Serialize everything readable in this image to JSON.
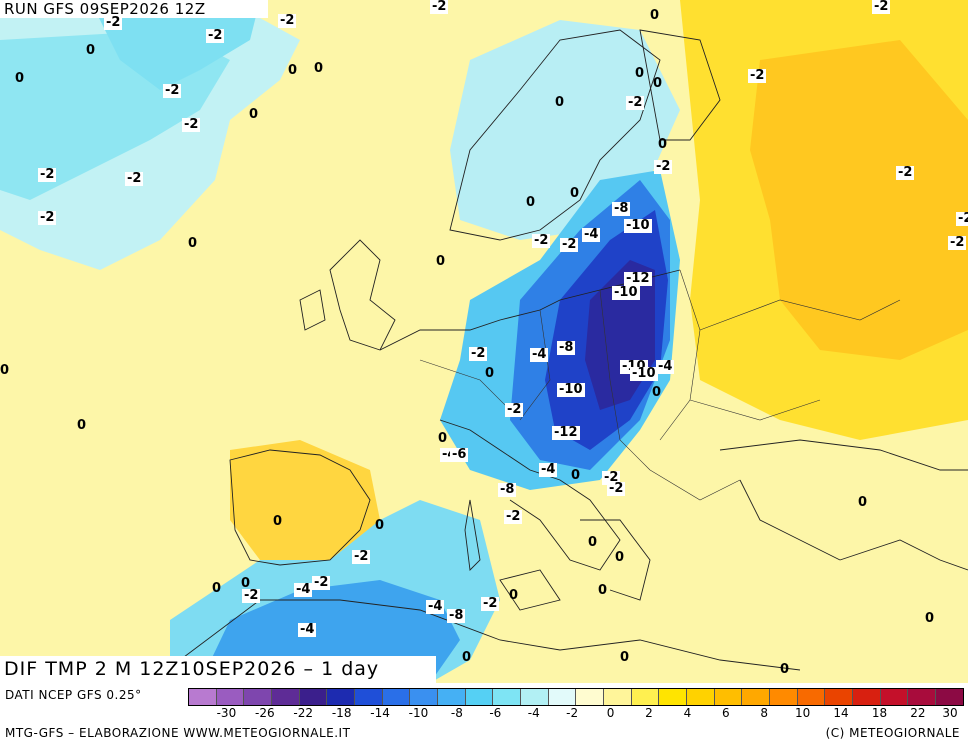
{
  "header": {
    "run_title": "RUN GFS 09SEP2026 12Z"
  },
  "footer_title": {
    "variable": "DIF TMP 2 M 12Z10SEP2026 – 1 day"
  },
  "legend": {
    "data_source": "DATI NCEP GFS 0.25°",
    "colors": [
      "#b87ad0",
      "#9a5cc0",
      "#7e46ae",
      "#5e2c96",
      "#3b1f8c",
      "#1d2bb0",
      "#1f4fd8",
      "#2a6fe8",
      "#3a90f0",
      "#45b0f4",
      "#55d0f4",
      "#7ee4f4",
      "#b2f0f4",
      "#e2fafa",
      "#fffcd0",
      "#fff59a",
      "#fff050",
      "#ffe400",
      "#ffd200",
      "#ffbe00",
      "#ffa800",
      "#ff8a00",
      "#f86a00",
      "#ea4400",
      "#d82010",
      "#c4102a",
      "#a80c3c",
      "#8c0a44"
    ],
    "ticks": [
      "-30",
      "-26",
      "-22",
      "-18",
      "-14",
      "-10",
      "-8",
      "-6",
      "-4",
      "-2",
      "0",
      "2",
      "4",
      "6",
      "8",
      "10",
      "14",
      "18",
      "22",
      "30"
    ]
  },
  "credits": {
    "left": "MTG-GFS – ELABORAZIONE WWW.METEOGIORNALE.IT",
    "right": "(C) METEOGIORNALE"
  },
  "contour_labels": {
    "boxed": [
      "-2",
      "-2",
      "-2",
      "-2",
      "-2",
      "-2",
      "-2",
      "-2",
      "-2",
      "-2",
      "-2",
      "-2",
      "-2",
      "-2",
      "-2",
      "-2",
      "-8",
      "-10",
      "-4",
      "-2",
      "-12",
      "-10",
      "-4",
      "-8",
      "-10",
      "-10",
      "-4",
      "-2",
      "-10",
      "-12",
      "-4",
      "-2",
      "-8",
      "-2",
      "-2",
      "-4",
      "-4",
      "-2",
      "-2",
      "-4",
      "-8",
      "-2",
      "-2",
      "-4",
      "-6",
      "-2",
      "-2"
    ],
    "plain": [
      "0",
      "0",
      "0",
      "0",
      "0",
      "0",
      "0",
      "0",
      "0",
      "0",
      "0",
      "0",
      "0",
      "0",
      "0",
      "0",
      "0",
      "0",
      "0",
      "0",
      "0",
      "0",
      "0",
      "0",
      "0",
      "0",
      "0",
      "0",
      "0",
      "0",
      "0",
      "0",
      "0",
      "0",
      "0",
      "0",
      "0",
      "0",
      "0"
    ]
  }
}
